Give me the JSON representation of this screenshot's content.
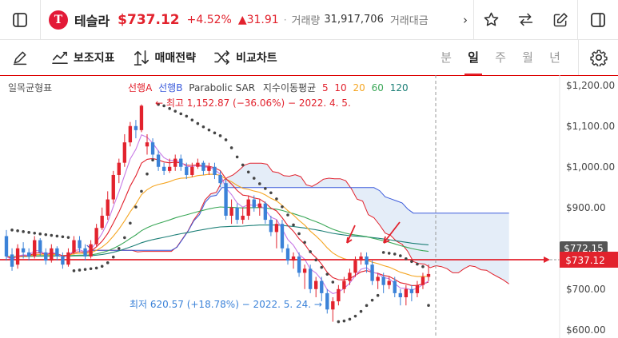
{
  "header": {
    "logo_letter": "T",
    "name": "테슬라",
    "price": "$737.12",
    "pct_change": "+4.52%",
    "change": "▲31.91",
    "volume_label": "거래량",
    "volume_value": "31,917,706",
    "amount_label": "거래대금",
    "more": "›"
  },
  "toolbar": {
    "indicators": "보조지표",
    "strategy": "매매전략",
    "compare": "비교차트",
    "periods": [
      "분",
      "일",
      "주",
      "월",
      "년"
    ],
    "active_period": "일"
  },
  "chart_data": {
    "type": "candlestick",
    "indicator_title": "일목균형표",
    "legend": [
      {
        "label": "선행A",
        "color": "#e2222d"
      },
      {
        "label": "선행B",
        "color": "#3b5bdb"
      },
      {
        "label": "Parabolic SAR",
        "color": "#444444"
      },
      {
        "label": "지수이동평균",
        "color": "#444444"
      },
      {
        "label": "5",
        "color": "#e2222d"
      },
      {
        "label": "10",
        "color": "#e2222d"
      },
      {
        "label": "20",
        "color": "#f5a623"
      },
      {
        "label": "60",
        "color": "#3aa757"
      },
      {
        "label": "120",
        "color": "#1c7f77"
      }
    ],
    "high_annotation": "최고 1,152.87 (−36.06%) − 2022. 4. 5.",
    "low_annotation": "최저 620.57 (+18.78%) − 2022. 5. 24.",
    "y_ticks": [
      "$1,200.00",
      "$1,100.00",
      "$1,000.00",
      "$900.00",
      "$800.00",
      "$700.00",
      "$600.00"
    ],
    "ylim": [
      580,
      1225
    ],
    "crosshair_label": "$772.15",
    "last_price_label": "$737.12",
    "candles": [
      [
        830,
        780,
        845,
        770
      ],
      [
        785,
        755,
        800,
        745
      ],
      [
        760,
        800,
        810,
        750
      ],
      [
        800,
        790,
        815,
        775
      ],
      [
        790,
        780,
        800,
        770
      ],
      [
        780,
        820,
        830,
        775
      ],
      [
        820,
        790,
        825,
        780
      ],
      [
        790,
        770,
        800,
        760
      ],
      [
        770,
        800,
        810,
        765
      ],
      [
        800,
        780,
        805,
        770
      ],
      [
        780,
        760,
        790,
        750
      ],
      [
        760,
        790,
        800,
        755
      ],
      [
        790,
        820,
        830,
        785
      ],
      [
        820,
        800,
        830,
        790
      ],
      [
        800,
        780,
        810,
        770
      ],
      [
        780,
        810,
        820,
        775
      ],
      [
        810,
        850,
        860,
        805
      ],
      [
        850,
        880,
        900,
        845
      ],
      [
        880,
        920,
        940,
        870
      ],
      [
        920,
        980,
        990,
        910
      ],
      [
        980,
        1010,
        1020,
        960
      ],
      [
        1010,
        1060,
        1080,
        1000
      ],
      [
        1060,
        1100,
        1110,
        1050
      ],
      [
        1100,
        1090,
        1115,
        1070
      ],
      [
        1090,
        1150,
        1153,
        1085
      ],
      [
        1050,
        1060,
        1080,
        1030
      ],
      [
        1060,
        1030,
        1070,
        1020
      ],
      [
        1030,
        1000,
        1040,
        990
      ],
      [
        1000,
        990,
        1010,
        980
      ],
      [
        990,
        1000,
        1020,
        985
      ],
      [
        1000,
        1020,
        1030,
        990
      ],
      [
        1020,
        1000,
        1030,
        990
      ],
      [
        1000,
        980,
        1010,
        970
      ],
      [
        980,
        1000,
        1010,
        975
      ],
      [
        1000,
        1010,
        1020,
        995
      ],
      [
        1010,
        990,
        1015,
        980
      ],
      [
        990,
        1000,
        1010,
        980
      ],
      [
        1000,
        980,
        1010,
        970
      ],
      [
        980,
        960,
        990,
        950
      ],
      [
        960,
        880,
        970,
        870
      ],
      [
        880,
        900,
        920,
        860
      ],
      [
        900,
        870,
        910,
        860
      ],
      [
        870,
        880,
        900,
        860
      ],
      [
        880,
        920,
        930,
        870
      ],
      [
        920,
        900,
        930,
        890
      ],
      [
        900,
        910,
        920,
        880
      ],
      [
        910,
        870,
        915,
        860
      ],
      [
        870,
        840,
        880,
        830
      ],
      [
        840,
        860,
        870,
        800
      ],
      [
        860,
        800,
        870,
        790
      ],
      [
        800,
        770,
        810,
        760
      ],
      [
        770,
        780,
        790,
        750
      ],
      [
        780,
        740,
        790,
        730
      ],
      [
        740,
        750,
        760,
        700
      ],
      [
        750,
        700,
        760,
        690
      ],
      [
        700,
        720,
        730,
        680
      ],
      [
        720,
        690,
        730,
        670
      ],
      [
        690,
        650,
        700,
        640
      ],
      [
        650,
        670,
        680,
        620
      ],
      [
        670,
        700,
        710,
        660
      ],
      [
        700,
        720,
        730,
        690
      ],
      [
        720,
        740,
        750,
        710
      ],
      [
        740,
        770,
        780,
        730
      ],
      [
        770,
        780,
        790,
        760
      ],
      [
        780,
        760,
        790,
        740
      ],
      [
        760,
        720,
        770,
        710
      ],
      [
        720,
        730,
        740,
        700
      ],
      [
        730,
        710,
        740,
        690
      ],
      [
        710,
        720,
        730,
        700
      ],
      [
        720,
        690,
        730,
        680
      ],
      [
        690,
        680,
        700,
        660
      ],
      [
        680,
        700,
        710,
        660
      ],
      [
        700,
        690,
        710,
        670
      ],
      [
        690,
        710,
        720,
        680
      ],
      [
        710,
        730,
        740,
        700
      ],
      [
        730,
        737,
        760,
        720
      ]
    ]
  }
}
